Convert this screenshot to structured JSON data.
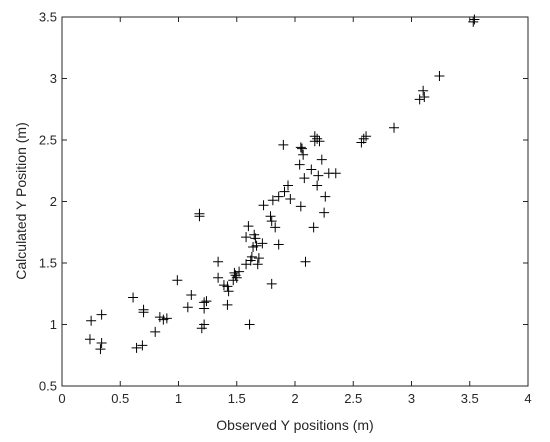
{
  "chart_data": {
    "type": "scatter",
    "title": "",
    "xlabel": "Observed Y positions (m)",
    "ylabel": "Calculated Y Position (m)",
    "xlim": [
      0,
      4
    ],
    "ylim": [
      0.5,
      3.5
    ],
    "x_ticks": [
      "0",
      "0.5",
      "1",
      "1.5",
      "2",
      "2.5",
      "3",
      "3.5",
      "4"
    ],
    "y_ticks": [
      "0.5",
      "1",
      "1.5",
      "2",
      "2.5",
      "3",
      "3.5"
    ],
    "grid": false,
    "legend": "none",
    "marker": "+",
    "marker_color": "#000000",
    "series": [
      {
        "points": [
          [
            0.24,
            0.88
          ],
          [
            0.25,
            1.03
          ],
          [
            0.33,
            0.8
          ],
          [
            0.34,
            0.85
          ],
          [
            0.34,
            1.08
          ],
          [
            0.61,
            1.22
          ],
          [
            0.64,
            0.81
          ],
          [
            0.69,
            0.83
          ],
          [
            0.7,
            1.1
          ],
          [
            0.7,
            1.12
          ],
          [
            0.8,
            0.94
          ],
          [
            0.84,
            1.06
          ],
          [
            0.87,
            1.04
          ],
          [
            0.9,
            1.05
          ],
          [
            0.99,
            1.36
          ],
          [
            1.08,
            1.14
          ],
          [
            1.11,
            1.24
          ],
          [
            1.18,
            1.88
          ],
          [
            1.18,
            1.9
          ],
          [
            1.2,
            0.97
          ],
          [
            1.22,
            1.0
          ],
          [
            1.22,
            1.13
          ],
          [
            1.22,
            1.18
          ],
          [
            1.24,
            1.19
          ],
          [
            1.34,
            1.38
          ],
          [
            1.34,
            1.51
          ],
          [
            1.39,
            1.32
          ],
          [
            1.42,
            1.16
          ],
          [
            1.42,
            1.31
          ],
          [
            1.43,
            1.27
          ],
          [
            1.47,
            1.36
          ],
          [
            1.48,
            1.42
          ],
          [
            1.49,
            1.4
          ],
          [
            1.5,
            1.38
          ],
          [
            1.52,
            1.43
          ],
          [
            1.58,
            1.49
          ],
          [
            1.58,
            1.71
          ],
          [
            1.6,
            1.8
          ],
          [
            1.61,
            1.0
          ],
          [
            1.62,
            1.52
          ],
          [
            1.63,
            1.55
          ],
          [
            1.64,
            1.63
          ],
          [
            1.65,
            1.73
          ],
          [
            1.66,
            1.7
          ],
          [
            1.67,
            1.64
          ],
          [
            1.68,
            1.49
          ],
          [
            1.69,
            1.54
          ],
          [
            1.72,
            1.66
          ],
          [
            1.73,
            1.97
          ],
          [
            1.79,
            1.88
          ],
          [
            1.8,
            1.33
          ],
          [
            1.8,
            1.84
          ],
          [
            1.81,
            2.01
          ],
          [
            1.83,
            1.79
          ],
          [
            1.86,
            1.65
          ],
          [
            1.86,
            2.04
          ],
          [
            1.9,
            2.46
          ],
          [
            1.91,
            2.08
          ],
          [
            1.94,
            2.13
          ],
          [
            1.96,
            2.02
          ],
          [
            2.04,
            2.3
          ],
          [
            2.05,
            2.44
          ],
          [
            2.05,
            1.96
          ],
          [
            2.06,
            2.43
          ],
          [
            2.07,
            2.38
          ],
          [
            2.08,
            2.19
          ],
          [
            2.09,
            1.51
          ],
          [
            2.14,
            2.26
          ],
          [
            2.16,
            1.79
          ],
          [
            2.17,
            2.49
          ],
          [
            2.17,
            2.53
          ],
          [
            2.19,
            2.13
          ],
          [
            2.19,
            2.51
          ],
          [
            2.2,
            2.21
          ],
          [
            2.21,
            2.49
          ],
          [
            2.23,
            2.34
          ],
          [
            2.25,
            1.91
          ],
          [
            2.26,
            2.04
          ],
          [
            2.29,
            2.23
          ],
          [
            2.35,
            2.23
          ],
          [
            2.57,
            2.48
          ],
          [
            2.59,
            2.51
          ],
          [
            2.61,
            2.53
          ],
          [
            2.85,
            2.6
          ],
          [
            3.07,
            2.83
          ],
          [
            3.1,
            2.9
          ],
          [
            3.11,
            2.85
          ],
          [
            3.24,
            3.02
          ],
          [
            3.53,
            3.46
          ],
          [
            3.54,
            3.48
          ]
        ]
      }
    ]
  }
}
